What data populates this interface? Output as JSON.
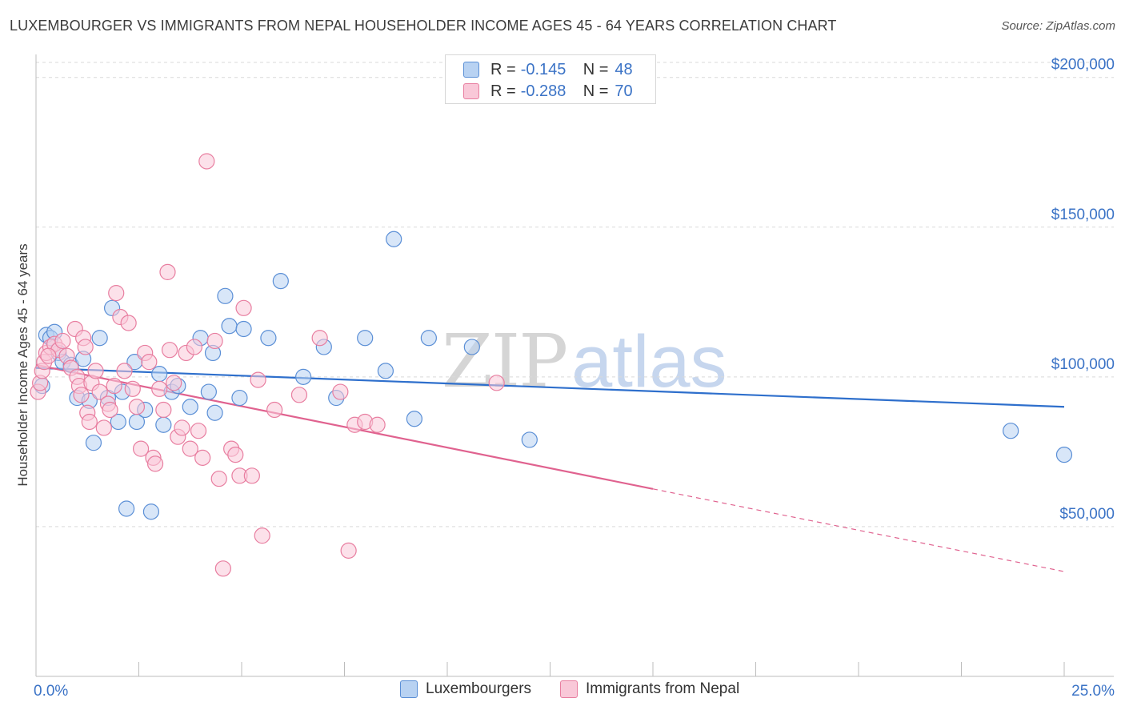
{
  "title": "LUXEMBOURGER VS IMMIGRANTS FROM NEPAL HOUSEHOLDER INCOME AGES 45 - 64 YEARS CORRELATION CHART",
  "source": "Source: ZipAtlas.com",
  "watermark": {
    "zip": "ZIP",
    "atlas": "atlas"
  },
  "legend": {
    "series": [
      {
        "r_label": "R =",
        "r_value": "-0.145",
        "n_label": "N =",
        "n_value": "48"
      },
      {
        "r_label": "R =",
        "r_value": "-0.288",
        "n_label": "N =",
        "n_value": "70"
      }
    ]
  },
  "colors": {
    "blue_fill": "#b8d2f2",
    "blue_stroke": "#5b8fd6",
    "blue_line": "#2e6fcc",
    "pink_fill": "#f9c8d8",
    "pink_stroke": "#e87ea0",
    "pink_line": "#e0628f",
    "axis_text": "#3b73c6",
    "grid": "#d9d9d9"
  },
  "chart_data": {
    "type": "scatter",
    "title": "LUXEMBOURGER VS IMMIGRANTS FROM NEPAL HOUSEHOLDER INCOME AGES 45 - 64 YEARS CORRELATION CHART",
    "xlabel": "",
    "ylabel": "Householder Income Ages 45 - 64 years",
    "xlim": [
      0,
      25
    ],
    "ylim": [
      0,
      205000
    ],
    "x_tick_labels": [
      "0.0%",
      "25.0%"
    ],
    "y_ticks": [
      50000,
      100000,
      150000,
      200000
    ],
    "y_tick_labels": [
      "$50,000",
      "$100,000",
      "$150,000",
      "$200,000"
    ],
    "grid": true,
    "series": [
      {
        "name": "Luxembourgers",
        "color": "blue",
        "r": -0.145,
        "n": 48,
        "trend": {
          "x0": 0,
          "y0": 103000,
          "x1": 25,
          "y1": 90000,
          "dashed_from": null
        },
        "points": [
          [
            0.25,
            114000
          ],
          [
            0.35,
            113000
          ],
          [
            0.45,
            115000
          ],
          [
            0.55,
            108000
          ],
          [
            0.65,
            105000
          ],
          [
            0.85,
            104000
          ],
          [
            1.0,
            93000
          ],
          [
            1.15,
            106000
          ],
          [
            1.3,
            92000
          ],
          [
            1.4,
            78000
          ],
          [
            1.55,
            113000
          ],
          [
            1.75,
            93000
          ],
          [
            1.85,
            123000
          ],
          [
            2.0,
            85000
          ],
          [
            2.1,
            95000
          ],
          [
            2.2,
            56000
          ],
          [
            2.4,
            105000
          ],
          [
            2.45,
            85000
          ],
          [
            2.65,
            89000
          ],
          [
            2.8,
            55000
          ],
          [
            3.0,
            101000
          ],
          [
            3.1,
            84000
          ],
          [
            3.3,
            95000
          ],
          [
            3.45,
            97000
          ],
          [
            3.75,
            90000
          ],
          [
            4.0,
            113000
          ],
          [
            4.2,
            95000
          ],
          [
            4.3,
            108000
          ],
          [
            4.35,
            88000
          ],
          [
            4.6,
            127000
          ],
          [
            4.7,
            117000
          ],
          [
            4.95,
            93000
          ],
          [
            5.05,
            116000
          ],
          [
            5.65,
            113000
          ],
          [
            5.95,
            132000
          ],
          [
            6.5,
            100000
          ],
          [
            7.0,
            110000
          ],
          [
            7.3,
            93000
          ],
          [
            8.0,
            113000
          ],
          [
            8.5,
            102000
          ],
          [
            8.7,
            146000
          ],
          [
            9.2,
            86000
          ],
          [
            9.55,
            113000
          ],
          [
            10.6,
            110000
          ],
          [
            12.0,
            79000
          ],
          [
            23.7,
            82000
          ],
          [
            25.0,
            74000
          ],
          [
            0.15,
            97000
          ]
        ]
      },
      {
        "name": "Immigrants from Nepal",
        "color": "pink",
        "r": -0.288,
        "n": 70,
        "trend": {
          "x0": 0,
          "y0": 104000,
          "x1": 25,
          "y1": 35000,
          "dashed_from": 15
        },
        "points": [
          [
            0.05,
            95000
          ],
          [
            0.1,
            98000
          ],
          [
            0.15,
            102000
          ],
          [
            0.2,
            105000
          ],
          [
            0.25,
            108000
          ],
          [
            0.35,
            110000
          ],
          [
            0.45,
            111000
          ],
          [
            0.55,
            109000
          ],
          [
            0.65,
            112000
          ],
          [
            0.75,
            107000
          ],
          [
            0.85,
            103000
          ],
          [
            0.95,
            116000
          ],
          [
            1.0,
            100000
          ],
          [
            1.05,
            97000
          ],
          [
            1.1,
            94000
          ],
          [
            1.15,
            113000
          ],
          [
            1.2,
            110000
          ],
          [
            1.25,
            88000
          ],
          [
            1.3,
            85000
          ],
          [
            1.35,
            98000
          ],
          [
            1.45,
            102000
          ],
          [
            1.55,
            95000
          ],
          [
            1.65,
            83000
          ],
          [
            1.75,
            91000
          ],
          [
            1.8,
            89000
          ],
          [
            1.9,
            97000
          ],
          [
            1.95,
            128000
          ],
          [
            2.05,
            120000
          ],
          [
            2.15,
            102000
          ],
          [
            2.25,
            118000
          ],
          [
            2.35,
            96000
          ],
          [
            2.45,
            90000
          ],
          [
            2.55,
            76000
          ],
          [
            2.65,
            108000
          ],
          [
            2.75,
            105000
          ],
          [
            2.85,
            73000
          ],
          [
            2.9,
            71000
          ],
          [
            3.0,
            96000
          ],
          [
            3.1,
            89000
          ],
          [
            3.2,
            135000
          ],
          [
            3.25,
            109000
          ],
          [
            3.35,
            98000
          ],
          [
            3.45,
            80000
          ],
          [
            3.55,
            83000
          ],
          [
            3.65,
            108000
          ],
          [
            3.75,
            76000
          ],
          [
            3.85,
            110000
          ],
          [
            3.95,
            82000
          ],
          [
            4.05,
            73000
          ],
          [
            4.15,
            172000
          ],
          [
            4.35,
            112000
          ],
          [
            4.45,
            66000
          ],
          [
            4.55,
            36000
          ],
          [
            4.75,
            76000
          ],
          [
            4.85,
            74000
          ],
          [
            4.95,
            67000
          ],
          [
            5.05,
            123000
          ],
          [
            5.25,
            67000
          ],
          [
            5.4,
            99000
          ],
          [
            5.5,
            47000
          ],
          [
            5.8,
            89000
          ],
          [
            6.4,
            94000
          ],
          [
            6.9,
            113000
          ],
          [
            7.4,
            95000
          ],
          [
            7.6,
            42000
          ],
          [
            7.75,
            84000
          ],
          [
            8.0,
            85000
          ],
          [
            8.3,
            84000
          ],
          [
            11.2,
            98000
          ],
          [
            0.3,
            107000
          ]
        ]
      }
    ]
  },
  "axis": {
    "ylabel": "Householder Income Ages 45 - 64 years",
    "x_min_label": "0.0%",
    "x_max_label": "25.0%"
  },
  "bottom_legend": {
    "items": [
      "Luxembourgers",
      "Immigrants from Nepal"
    ]
  }
}
